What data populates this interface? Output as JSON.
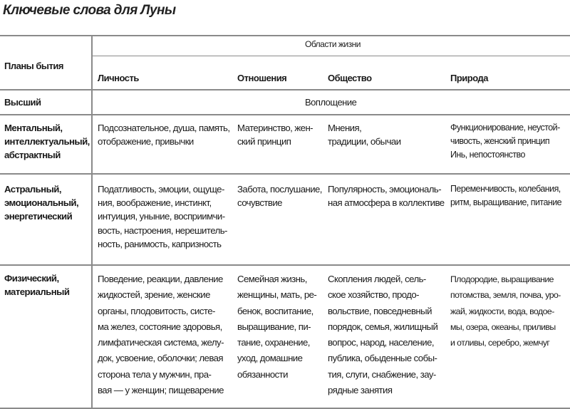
{
  "title": "Ключевые слова для Луны",
  "table": {
    "header": {
      "row_header": "Планы бытия",
      "group": "Области жизни",
      "columns": [
        "Личность",
        "Отношения",
        "Общество",
        "Природа"
      ]
    },
    "rows": [
      {
        "plane": "Высший",
        "merged": "Воплощение"
      },
      {
        "plane": "Ментальный,\nинтеллектуальный,\nабстрактный",
        "cells": [
          "Подсознательное, душа, память,\nотображение, привычки",
          "Материнство, жен-\nский принцип",
          "Мнения,\nтрадиции, обычаи",
          "Функционирование, неустой-\nчивость, женский принцип\nИнь, непостоянство"
        ]
      },
      {
        "plane": "Астральный,\nэмоциональный,\nэнергетический",
        "cells": [
          "Податливость, эмоции, ощуще-\nния, воображение, инстинкт,\nинтуиция, уныние, восприимчи-\nвость, настроения, нерешитель-\nность, ранимость, капризность",
          "Забота, послушание,\nсочувствие",
          "Популярность, эмоциональ-\nная атмосфера в коллективе",
          "Переменчивость, колебания,\nритм, выращивание, питание"
        ]
      },
      {
        "plane": "Физический,\nматериальный",
        "cells": [
          "Поведение, реакции, давление\nжидкостей, зрение, женские\nорганы, плодовитость, систе-\nма желез, состояние здоровья,\nлимфатическая система, желу-\nдок, усвоение, оболочки; левая\nсторона тела у мужчин, пра-\nвая — у женщин; пищеварение",
          "Семейная жизнь,\nженщины, мать, ре-\nбенок, воспитание,\nвыращивание, пи-\nтание, охранение,\nуход, домашние\nобязанности",
          "Скопления людей, сель-\nское хозяйство, продо-\nвольствие, повседневный\nпорядок, семья, жилищный\nвопрос, народ, население,\nпублика, обыденные собы-\nтия, слуги, снабжение, зау-\nрядные занятия",
          "Плодородие, выращивание\nпотомства, земля, почва, уро-\nжай, жидкости, вода, водое-\nмы, озера, океаны, приливы\nи отливы, серебро, жемчуг"
        ]
      }
    ]
  }
}
